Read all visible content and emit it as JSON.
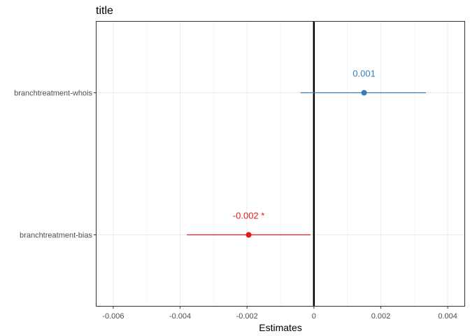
{
  "chart_data": {
    "type": "forest",
    "title": "title",
    "xlabel": "Estimates",
    "ylabel": "",
    "xlim": [
      -0.0065,
      0.0045
    ],
    "x_ticks": [
      -0.006,
      -0.004,
      -0.002,
      0,
      0.002,
      0.004
    ],
    "x_tick_labels": [
      "-0.006",
      "-0.004",
      "-0.002",
      "0",
      "0.002",
      "0.004"
    ],
    "reference_line": 0,
    "grid": true,
    "legend": "none",
    "categories": [
      "branchtreatment-whois",
      "branchtreatment-bias"
    ],
    "estimates": [
      {
        "term": "branchtreatment-whois",
        "estimate": 0.0015,
        "ci_low": -0.0004,
        "ci_high": 0.00335,
        "label": "0.001",
        "color": "#377eb8"
      },
      {
        "term": "branchtreatment-bias",
        "estimate": -0.00195,
        "ci_low": -0.0038,
        "ci_high": -0.0001,
        "label": "-0.002 *",
        "color": "#e41a1c"
      }
    ]
  }
}
